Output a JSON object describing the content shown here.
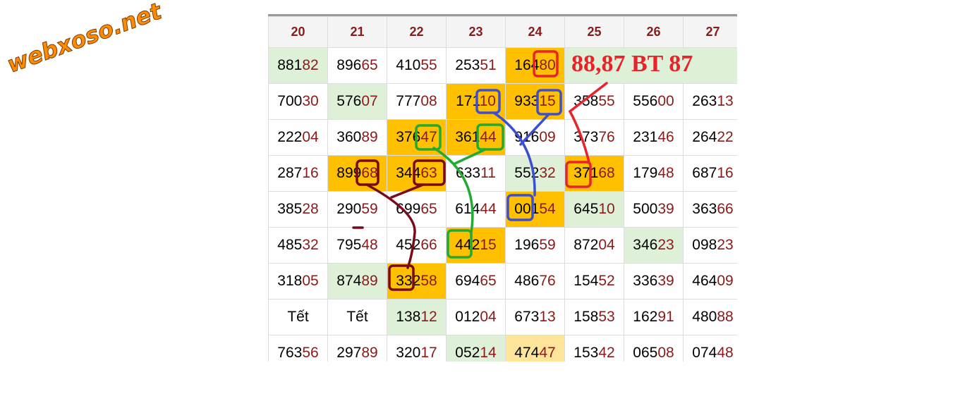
{
  "watermark": "webxoso.net",
  "annotation": "88,87 BT 87",
  "table": {
    "columns": [
      "20",
      "21",
      "22",
      "23",
      "24",
      "25",
      "26",
      "27"
    ],
    "rows": [
      [
        "88182",
        "89665",
        "41055",
        "25351",
        "16480"
      ],
      [
        "70030",
        "57607",
        "77708",
        "17110",
        "93315",
        "35855",
        "55600",
        "26313"
      ],
      [
        "22204",
        "36089",
        "37647",
        "36144",
        "91609",
        "37376",
        "23146",
        "26422"
      ],
      [
        "28716",
        "89968",
        "34463",
        "63311",
        "55232",
        "37168",
        "17948",
        "68716"
      ],
      [
        "38528",
        "29059",
        "69965",
        "61444",
        "00154",
        "64510",
        "50039",
        "36366"
      ],
      [
        "48532",
        "79548",
        "45266",
        "44215",
        "19659",
        "87204",
        "34623",
        "09823"
      ],
      [
        "31805",
        "87489",
        "33258",
        "69465",
        "48676",
        "15452",
        "33639",
        "46409"
      ],
      [
        "Tết",
        "Tết",
        "13812",
        "01204",
        "67313",
        "15853",
        "16291",
        "48088"
      ],
      [
        "76356",
        "29789",
        "32017",
        "05214",
        "47447",
        "15342",
        "06508",
        "07448"
      ]
    ]
  }
}
